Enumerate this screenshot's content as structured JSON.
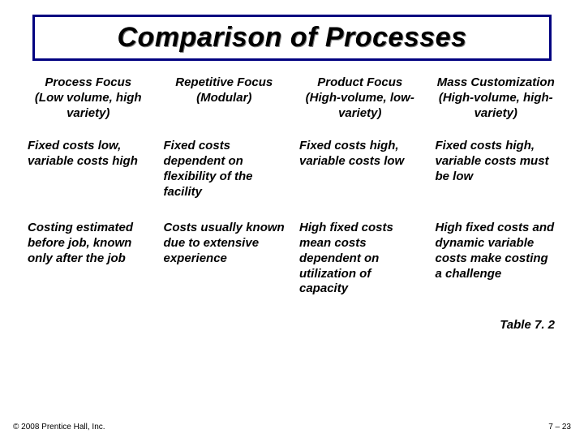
{
  "title": "Comparison of Processes",
  "title_box_border_color": "#000080",
  "title_shadow_color": "#808080",
  "background_color": "#ffffff",
  "text_color": "#000000",
  "font": {
    "family": "Arial",
    "title_size_pt": 34,
    "body_size_pt": 15,
    "footer_size_pt": 10,
    "weight": "bold",
    "style": "italic"
  },
  "columns": [
    {
      "main": "Process Focus",
      "sub": "(Low volume, high variety)"
    },
    {
      "main": "Repetitive Focus",
      "sub": "(Modular)"
    },
    {
      "main": "Product Focus",
      "sub": "(High-volume, low-variety)"
    },
    {
      "main": "Mass Customization",
      "sub": "(High-volume, high-variety)"
    }
  ],
  "rows": [
    [
      "Fixed costs low, variable costs high",
      "Fixed costs dependent on flexibility of the facility",
      "Fixed costs high, variable costs low",
      "Fixed costs high, variable costs must be low"
    ],
    [
      "Costing estimated before job, known only after the job",
      "Costs usually known due to extensive experience",
      "High fixed costs mean costs dependent on utilization of capacity",
      "High fixed costs and dynamic variable costs make costing a challenge"
    ]
  ],
  "caption": "Table 7. 2",
  "footer": {
    "left": "© 2008 Prentice Hall, Inc.",
    "right": "7 – 23"
  }
}
